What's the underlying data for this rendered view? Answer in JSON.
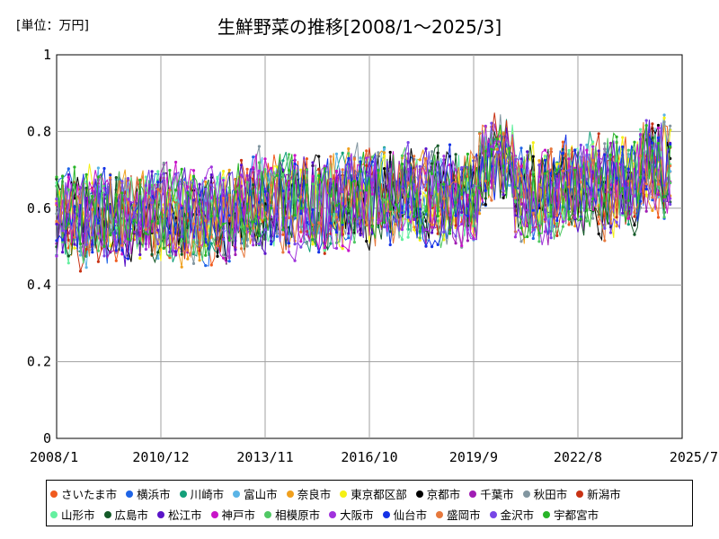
{
  "chart_data": {
    "type": "line",
    "title": "生鮮野菜の推移[2008/1～2025/3]",
    "unit_label": "[単位：万円]",
    "x_start": "2008/1",
    "x_end": "2025/3",
    "x_ticks": [
      "2008/1",
      "2010/12",
      "2013/11",
      "2016/10",
      "2019/9",
      "2022/8",
      "2025/7"
    ],
    "y_ticks": [
      "0",
      "0.2",
      "0.4",
      "0.6",
      "0.8",
      "1"
    ],
    "ylim": [
      0,
      1
    ],
    "grid": true,
    "legend_position": "bottom",
    "series": [
      {
        "name": "さいたま市",
        "color": "#f05a1e",
        "seed": 1
      },
      {
        "name": "横浜市",
        "color": "#1e64e6",
        "seed": 2
      },
      {
        "name": "川崎市",
        "color": "#14a07a",
        "seed": 3
      },
      {
        "name": "富山市",
        "color": "#5ab4e6",
        "seed": 4
      },
      {
        "name": "奈良市",
        "color": "#f0a01e",
        "seed": 5
      },
      {
        "name": "東京都区部",
        "color": "#f5f014",
        "seed": 6
      },
      {
        "name": "京都市",
        "color": "#000000",
        "seed": 7
      },
      {
        "name": "千葉市",
        "color": "#a01eb4",
        "seed": 8
      },
      {
        "name": "秋田市",
        "color": "#8296a0",
        "seed": 9
      },
      {
        "name": "新潟市",
        "color": "#c83214",
        "seed": 10
      },
      {
        "name": "山形市",
        "color": "#64f0a0",
        "seed": 11
      },
      {
        "name": "広島市",
        "color": "#145a28",
        "seed": 12
      },
      {
        "name": "松江市",
        "color": "#5a14c8",
        "seed": 13
      },
      {
        "name": "神戸市",
        "color": "#c814c8",
        "seed": 14
      },
      {
        "name": "相模原市",
        "color": "#50c864",
        "seed": 15
      },
      {
        "name": "大阪市",
        "color": "#a032dc",
        "seed": 16
      },
      {
        "name": "仙台市",
        "color": "#1432e6",
        "seed": 17
      },
      {
        "name": "盛岡市",
        "color": "#e6783c",
        "seed": 18
      },
      {
        "name": "金沢市",
        "color": "#7846e6",
        "seed": 19
      },
      {
        "name": "宇都宮市",
        "color": "#28b428",
        "seed": 20
      }
    ]
  }
}
